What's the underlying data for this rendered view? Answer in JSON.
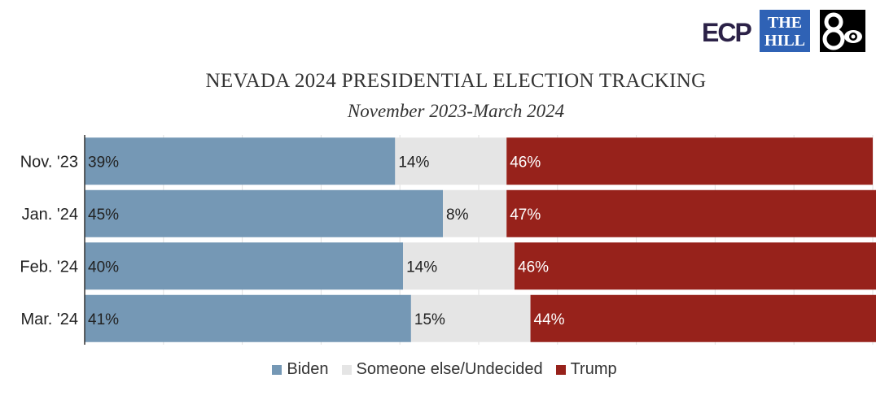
{
  "logos": {
    "ecp_text": "ECP",
    "hill_text_line1": "THE",
    "hill_text_line2": "HILL"
  },
  "chart_data": {
    "type": "bar",
    "orientation": "horizontal",
    "stacked": true,
    "title": "NEVADA 2024 PRESIDENTIAL ELECTION TRACKING",
    "subtitle": "November 2023-March 2024",
    "categories": [
      "Nov. '23",
      "Jan. '24",
      "Feb. '24",
      "Mar. '24"
    ],
    "series": [
      {
        "name": "Biden",
        "color": "#7598b5",
        "values": [
          39,
          45,
          40,
          41
        ],
        "labels": [
          "39%",
          "45%",
          "40%",
          "41%"
        ]
      },
      {
        "name": "Someone else/Undecided",
        "color": "#e5e5e5",
        "values": [
          14,
          8,
          14,
          15
        ],
        "labels": [
          "14%",
          "8%",
          "14%",
          "15%"
        ]
      },
      {
        "name": "Trump",
        "color": "#97221b",
        "values": [
          46,
          47,
          46,
          44
        ],
        "labels": [
          "46%",
          "47%",
          "46%",
          "44%"
        ]
      }
    ],
    "xlim": [
      0,
      99
    ],
    "grid": true,
    "legend_position": "bottom"
  }
}
